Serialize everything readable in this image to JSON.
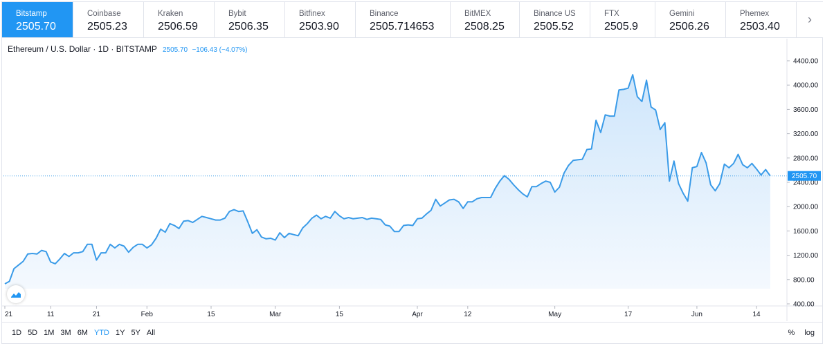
{
  "tabs": [
    {
      "exchange": "Bitstamp",
      "price": "2505.70",
      "active": true
    },
    {
      "exchange": "Coinbase",
      "price": "2505.23"
    },
    {
      "exchange": "Kraken",
      "price": "2506.59"
    },
    {
      "exchange": "Bybit",
      "price": "2506.35"
    },
    {
      "exchange": "Bitfinex",
      "price": "2503.90"
    },
    {
      "exchange": "Binance",
      "price": "2505.714653"
    },
    {
      "exchange": "BitMEX",
      "price": "2508.25"
    },
    {
      "exchange": "Binance US",
      "price": "2505.52"
    },
    {
      "exchange": "FTX",
      "price": "2505.9"
    },
    {
      "exchange": "Gemini",
      "price": "2506.26"
    },
    {
      "exchange": "Phemex",
      "price": "2503.40"
    }
  ],
  "legend": {
    "symbol": "Ethereum / U.S. Dollar · 1D · BITSTAMP",
    "last": "2505.70",
    "change": "−106.43 (−4.07%)"
  },
  "icons": {
    "next": "chevron-right-icon",
    "logo": "tradingview-logo-icon"
  },
  "colors": {
    "accent": "#2196f3",
    "line": "#3a9be8",
    "area_top": "#cfe6fb",
    "area_bottom": "#f4f9fe"
  },
  "ranges": [
    "1D",
    "5D",
    "1M",
    "3M",
    "6M",
    "YTD",
    "1Y",
    "5Y",
    "All"
  ],
  "active_range": "YTD",
  "scale_options": {
    "percent": "%",
    "log": "log"
  },
  "chart_data": {
    "type": "area",
    "title": "",
    "xlabel": "",
    "ylabel": "",
    "ylim": [
      400,
      4600
    ],
    "yticks": [
      "400.00",
      "800.00",
      "1200.00",
      "1600.00",
      "2000.00",
      "2400.00",
      "2800.00",
      "3200.00",
      "3600.00",
      "4000.00",
      "4400.00"
    ],
    "ytick_values": [
      400,
      800,
      1200,
      1600,
      2000,
      2400,
      2800,
      3200,
      3600,
      4000,
      4400
    ],
    "xticks": [
      {
        "label": "21",
        "day": 0
      },
      {
        "label": "11",
        "day": 10
      },
      {
        "label": "21",
        "day": 20
      },
      {
        "label": "Feb",
        "day": 31
      },
      {
        "label": "15",
        "day": 45
      },
      {
        "label": "Mar",
        "day": 59
      },
      {
        "label": "15",
        "day": 73
      },
      {
        "label": "Apr",
        "day": 90
      },
      {
        "label": "12",
        "day": 101
      },
      {
        "label": "May",
        "day": 120
      },
      {
        "label": "17",
        "day": 136
      },
      {
        "label": "Jun",
        "day": 151
      },
      {
        "label": "14",
        "day": 164
      }
    ],
    "last_price_label": "2505.70",
    "last_price": 2505.7,
    "grid": false,
    "series": [
      {
        "values": [
          730,
          770,
          980,
          1040,
          1100,
          1220,
          1230,
          1220,
          1280,
          1260,
          1090,
          1060,
          1140,
          1230,
          1180,
          1240,
          1240,
          1260,
          1380,
          1380,
          1120,
          1240,
          1240,
          1380,
          1320,
          1380,
          1350,
          1250,
          1330,
          1380,
          1380,
          1320,
          1370,
          1480,
          1630,
          1580,
          1720,
          1690,
          1640,
          1760,
          1770,
          1740,
          1790,
          1840,
          1820,
          1800,
          1780,
          1780,
          1810,
          1920,
          1950,
          1920,
          1930,
          1750,
          1560,
          1620,
          1500,
          1470,
          1480,
          1450,
          1570,
          1490,
          1560,
          1540,
          1520,
          1650,
          1720,
          1810,
          1860,
          1800,
          1840,
          1810,
          1920,
          1850,
          1800,
          1820,
          1800,
          1810,
          1820,
          1790,
          1810,
          1800,
          1790,
          1700,
          1680,
          1590,
          1590,
          1690,
          1700,
          1690,
          1800,
          1810,
          1880,
          1940,
          2120,
          2010,
          2060,
          2110,
          2120,
          2080,
          1970,
          2080,
          2080,
          2130,
          2150,
          2150,
          2150,
          2300,
          2420,
          2510,
          2450,
          2360,
          2280,
          2210,
          2160,
          2330,
          2330,
          2380,
          2420,
          2400,
          2240,
          2320,
          2550,
          2680,
          2760,
          2770,
          2780,
          2940,
          2950,
          3420,
          3220,
          3510,
          3490,
          3490,
          3920,
          3930,
          3950,
          4170,
          3810,
          3730,
          4080,
          3640,
          3590,
          3270,
          3380,
          2420,
          2750,
          2380,
          2220,
          2090,
          2640,
          2660,
          2890,
          2720,
          2360,
          2260,
          2380,
          2700,
          2640,
          2710,
          2860,
          2690,
          2640,
          2710,
          2620,
          2520,
          2610,
          2505.7
        ]
      }
    ]
  }
}
